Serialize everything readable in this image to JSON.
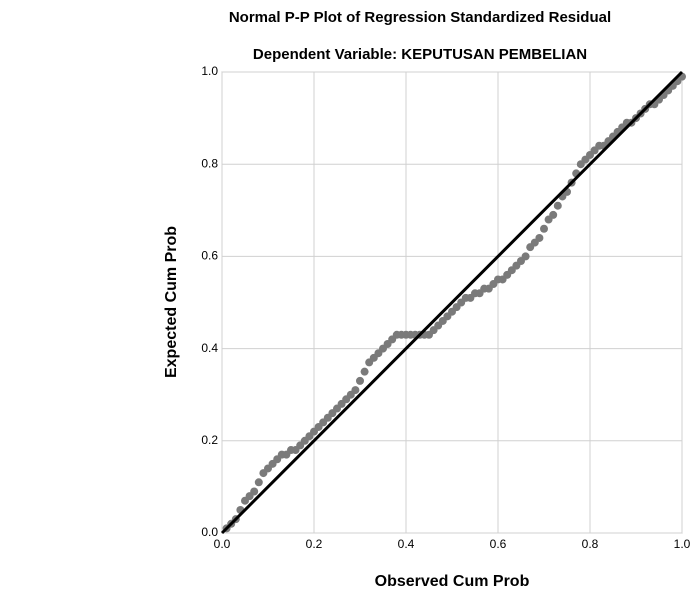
{
  "chart_data": {
    "type": "scatter",
    "title": "Normal P-P Plot of Regression Standardized Residual",
    "subtitle": "Dependent Variable: KEPUTUSAN PEMBELIAN",
    "x_label": "Observed Cum Prob",
    "y_label": "Expected Cum Prob",
    "x": [
      0.01,
      0.02,
      0.03,
      0.04,
      0.05,
      0.06,
      0.07,
      0.08,
      0.09,
      0.1,
      0.11,
      0.12,
      0.13,
      0.14,
      0.15,
      0.16,
      0.17,
      0.18,
      0.19,
      0.2,
      0.21,
      0.22,
      0.23,
      0.24,
      0.25,
      0.26,
      0.27,
      0.28,
      0.29,
      0.3,
      0.31,
      0.32,
      0.33,
      0.34,
      0.35,
      0.36,
      0.37,
      0.38,
      0.39,
      0.4,
      0.41,
      0.42,
      0.43,
      0.44,
      0.45,
      0.46,
      0.47,
      0.48,
      0.49,
      0.5,
      0.51,
      0.52,
      0.53,
      0.54,
      0.55,
      0.56,
      0.57,
      0.58,
      0.59,
      0.6,
      0.61,
      0.62,
      0.63,
      0.64,
      0.65,
      0.66,
      0.67,
      0.68,
      0.69,
      0.7,
      0.71,
      0.72,
      0.73,
      0.74,
      0.75,
      0.76,
      0.77,
      0.78,
      0.79,
      0.8,
      0.81,
      0.82,
      0.83,
      0.84,
      0.85,
      0.86,
      0.87,
      0.88,
      0.89,
      0.9,
      0.91,
      0.92,
      0.93,
      0.94,
      0.95,
      0.96,
      0.97,
      0.98,
      0.99,
      1.0
    ],
    "values": [
      0.01,
      0.02,
      0.03,
      0.05,
      0.07,
      0.08,
      0.09,
      0.11,
      0.13,
      0.14,
      0.15,
      0.16,
      0.17,
      0.17,
      0.18,
      0.18,
      0.19,
      0.2,
      0.21,
      0.22,
      0.23,
      0.24,
      0.25,
      0.26,
      0.27,
      0.28,
      0.29,
      0.3,
      0.31,
      0.33,
      0.35,
      0.37,
      0.38,
      0.39,
      0.4,
      0.41,
      0.42,
      0.43,
      0.43,
      0.43,
      0.43,
      0.43,
      0.43,
      0.43,
      0.43,
      0.44,
      0.45,
      0.46,
      0.47,
      0.48,
      0.49,
      0.5,
      0.51,
      0.51,
      0.52,
      0.52,
      0.53,
      0.53,
      0.54,
      0.55,
      0.55,
      0.56,
      0.57,
      0.58,
      0.59,
      0.6,
      0.62,
      0.63,
      0.64,
      0.66,
      0.68,
      0.69,
      0.71,
      0.73,
      0.74,
      0.76,
      0.78,
      0.8,
      0.81,
      0.82,
      0.83,
      0.84,
      0.84,
      0.85,
      0.86,
      0.87,
      0.88,
      0.89,
      0.89,
      0.9,
      0.91,
      0.92,
      0.93,
      0.93,
      0.94,
      0.95,
      0.96,
      0.97,
      0.98,
      0.99
    ],
    "color": "#7a7a7a",
    "xlim": [
      0,
      1
    ],
    "ylim": [
      0,
      1
    ],
    "xticks": [
      {
        "value": 0,
        "label": "0.0"
      },
      {
        "value": 0.2,
        "label": "0.2"
      },
      {
        "value": 0.4,
        "label": "0.4"
      },
      {
        "value": 0.6,
        "label": "0.6"
      },
      {
        "value": 0.8,
        "label": "0.8"
      },
      {
        "value": 1,
        "label": "1.0"
      }
    ],
    "yticks": [
      {
        "value": 0,
        "label": "0.0"
      },
      {
        "value": 0.2,
        "label": "0.2"
      },
      {
        "value": 0.4,
        "label": "0.4"
      },
      {
        "value": 0.6,
        "label": "0.6"
      },
      {
        "value": 0.8,
        "label": "0.8"
      },
      {
        "value": 1,
        "label": "1.0"
      }
    ],
    "grid": true
  }
}
